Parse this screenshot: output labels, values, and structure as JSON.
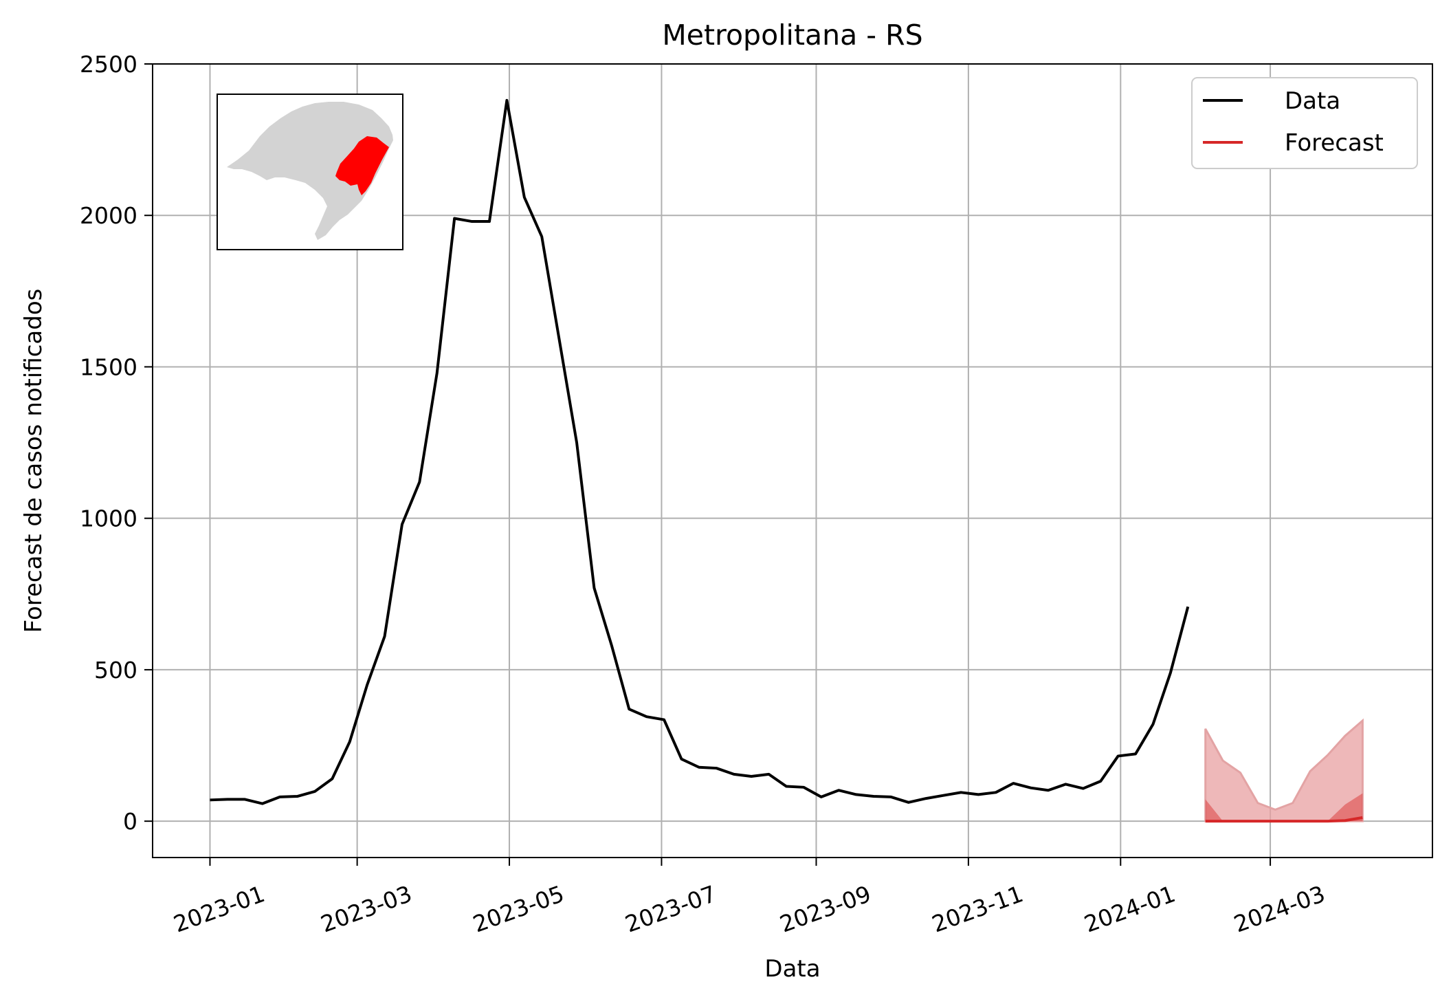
{
  "chart_data": {
    "type": "line",
    "title": "Metropolitana - RS",
    "xlabel": "Data",
    "ylabel": "Forecast de casos notificados",
    "x_ticks": [
      "2023-01",
      "2023-03",
      "2023-05",
      "2023-07",
      "2023-09",
      "2023-11",
      "2024-01",
      "2024-03"
    ],
    "y_ticks": [
      "0",
      "500",
      "1000",
      "1500",
      "2000",
      "2500"
    ],
    "xlim": [
      "2022-12-09",
      "2024-05-05"
    ],
    "ylim": [
      -120,
      2500
    ],
    "grid": true,
    "legend_position": "top-right",
    "inset": "map of Rio Grande do Sul with Metropolitana region highlighted",
    "colors": {
      "data": "#000000",
      "forecast": "#d62728",
      "inner_band": "#d62728",
      "outer_band": "#e8a0a2",
      "map_region": "#d3d3d3",
      "map_highlight": "#ff0000"
    },
    "series": [
      {
        "name": "Data",
        "x": [
          "2023-01-01",
          "2023-01-08",
          "2023-01-15",
          "2023-01-22",
          "2023-01-29",
          "2023-02-05",
          "2023-02-12",
          "2023-02-19",
          "2023-02-26",
          "2023-03-05",
          "2023-03-12",
          "2023-03-19",
          "2023-03-26",
          "2023-04-02",
          "2023-04-09",
          "2023-04-16",
          "2023-04-23",
          "2023-04-30",
          "2023-05-07",
          "2023-05-14",
          "2023-05-21",
          "2023-05-28",
          "2023-06-04",
          "2023-06-11",
          "2023-06-18",
          "2023-06-25",
          "2023-07-02",
          "2023-07-09",
          "2023-07-16",
          "2023-07-23",
          "2023-07-30",
          "2023-08-06",
          "2023-08-13",
          "2023-08-20",
          "2023-08-27",
          "2023-09-03",
          "2023-09-10",
          "2023-09-17",
          "2023-09-24",
          "2023-10-01",
          "2023-10-08",
          "2023-10-15",
          "2023-10-22",
          "2023-10-29",
          "2023-11-05",
          "2023-11-12",
          "2023-11-19",
          "2023-11-26",
          "2023-12-03",
          "2023-12-10",
          "2023-12-17",
          "2023-12-24",
          "2023-12-31",
          "2024-01-07",
          "2024-01-14",
          "2024-01-21",
          "2024-01-28"
        ],
        "values": [
          70,
          72,
          72,
          58,
          80,
          82,
          98,
          140,
          262,
          450,
          610,
          980,
          1120,
          1480,
          1990,
          1980,
          1980,
          2380,
          2060,
          1930,
          1590,
          1250,
          770,
          580,
          370,
          345,
          335,
          205,
          178,
          175,
          155,
          148,
          155,
          115,
          112,
          80,
          102,
          88,
          82,
          80,
          62,
          75,
          85,
          95,
          88,
          95,
          125,
          110,
          102,
          122,
          108,
          132,
          215,
          222,
          320,
          490,
          708
        ]
      },
      {
        "name": "Forecast",
        "x": [
          "2024-02-04",
          "2024-02-11",
          "2024-02-18",
          "2024-02-25",
          "2024-03-03",
          "2024-03-10",
          "2024-03-17",
          "2024-03-24",
          "2024-03-31",
          "2024-04-07"
        ],
        "values": [
          0,
          0,
          0,
          0,
          0,
          0,
          0,
          0,
          2,
          12
        ],
        "lower": [
          0,
          0,
          0,
          0,
          0,
          0,
          0,
          0,
          0,
          0
        ],
        "upper_inner": [
          72,
          0,
          0,
          0,
          0,
          0,
          0,
          0,
          55,
          92
        ],
        "upper_outer": [
          305,
          200,
          160,
          60,
          38,
          60,
          165,
          218,
          282,
          332
        ]
      }
    ]
  }
}
